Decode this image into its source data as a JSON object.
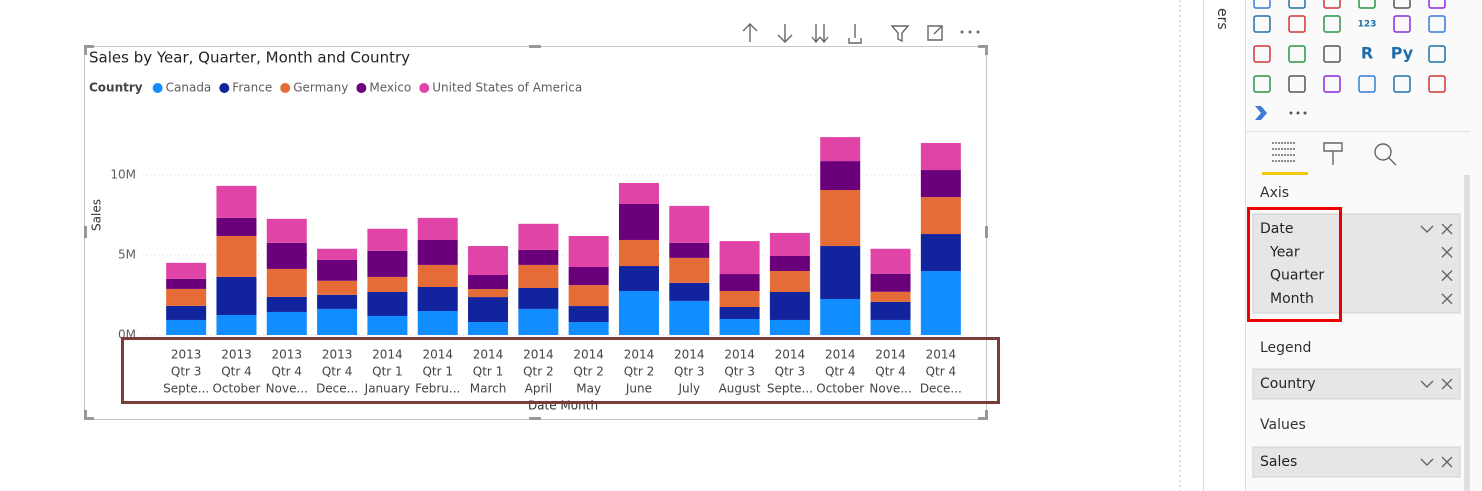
{
  "chart_data": {
    "type": "stacked_bar",
    "title": "Sales by Year, Quarter, Month and Country",
    "legend_title": "Country",
    "y_label": "Sales",
    "x_label": "Date Month",
    "categories": [
      [
        "2013",
        "Qtr 3",
        "Septe..."
      ],
      [
        "2013",
        "Qtr 4",
        "October"
      ],
      [
        "2013",
        "Qtr 4",
        "Nove..."
      ],
      [
        "2013",
        "Qtr 4",
        "Dece..."
      ],
      [
        "2014",
        "Qtr 1",
        "January"
      ],
      [
        "2014",
        "Qtr 1",
        "Febru..."
      ],
      [
        "2014",
        "Qtr 1",
        "March"
      ],
      [
        "2014",
        "Qtr 2",
        "April"
      ],
      [
        "2014",
        "Qtr 2",
        "May"
      ],
      [
        "2014",
        "Qtr 2",
        "June"
      ],
      [
        "2014",
        "Qtr 3",
        "July"
      ],
      [
        "2014",
        "Qtr 3",
        "August"
      ],
      [
        "2014",
        "Qtr 3",
        "Septe..."
      ],
      [
        "2014",
        "Qtr 4",
        "October"
      ],
      [
        "2014",
        "Qtr 4",
        "Nove..."
      ],
      [
        "2014",
        "Qtr 4",
        "Dece..."
      ]
    ],
    "series": [
      {
        "name": "Canada",
        "color": "#118dff",
        "values": [
          940000,
          1250000,
          1440000,
          1630000,
          1190000,
          1500000,
          810000,
          1630000,
          810000,
          2750000,
          2130000,
          1000000,
          940000,
          2250000,
          940000,
          4000000
        ]
      },
      {
        "name": "France",
        "color": "#12239e",
        "values": [
          880000,
          2380000,
          940000,
          880000,
          1500000,
          1500000,
          1560000,
          1310000,
          1000000,
          1560000,
          1130000,
          750000,
          1750000,
          3310000,
          1130000,
          2310000
        ]
      },
      {
        "name": "Germany",
        "color": "#e66c37",
        "values": [
          1060000,
          2560000,
          1750000,
          880000,
          940000,
          1380000,
          500000,
          1440000,
          1310000,
          1630000,
          1560000,
          1000000,
          1310000,
          3500000,
          630000,
          2310000
        ]
      },
      {
        "name": "Mexico",
        "color": "#6b007b",
        "values": [
          630000,
          1130000,
          1630000,
          1310000,
          1630000,
          1560000,
          880000,
          940000,
          1130000,
          2250000,
          940000,
          1060000,
          940000,
          1810000,
          1130000,
          1690000
        ]
      },
      {
        "name": "United States of America",
        "color": "#e044a7",
        "values": [
          1000000,
          2000000,
          1500000,
          690000,
          1380000,
          1380000,
          1810000,
          1630000,
          1940000,
          1310000,
          2310000,
          2060000,
          1440000,
          1500000,
          1560000,
          1690000
        ]
      }
    ],
    "ylim": [
      0,
      13000000
    ],
    "yticks": [
      {
        "value": 0,
        "label": "0M"
      },
      {
        "value": 5000000,
        "label": "5M"
      },
      {
        "value": 10000000,
        "label": "10M"
      }
    ],
    "grid": true
  },
  "fields_pane": {
    "tab_label": "ers",
    "icon_texts": [
      "123",
      "R",
      "Py"
    ],
    "wells": [
      {
        "label": "Axis",
        "fields": [
          "Date",
          "Year",
          "Quarter",
          "Month"
        ]
      },
      {
        "label": "Legend",
        "fields": [
          "Country"
        ]
      },
      {
        "label": "Values",
        "fields": [
          "Sales"
        ]
      }
    ]
  }
}
